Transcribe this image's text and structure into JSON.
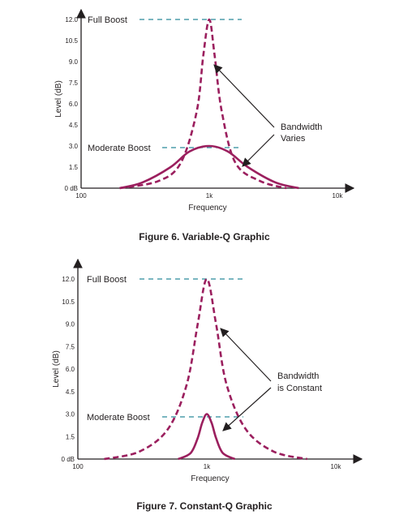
{
  "chart_data": [
    {
      "type": "line",
      "caption": "Figure 6. Variable-Q Graphic",
      "xlabel": "Frequency",
      "ylabel": "Level (dB)",
      "x_scale": "log",
      "xlim": [
        100,
        10000
      ],
      "x_ticks": [
        {
          "value": 100,
          "label": "100"
        },
        {
          "value": 1000,
          "label": "1k"
        },
        {
          "value": 10000,
          "label": "10k"
        }
      ],
      "ylim": [
        0,
        12.0
      ],
      "y_ticks": [
        {
          "value": 0,
          "label": "0 dB"
        },
        {
          "value": 1.5,
          "label": "1.5"
        },
        {
          "value": 3.0,
          "label": "3.0"
        },
        {
          "value": 4.5,
          "label": "4.5"
        },
        {
          "value": 6.0,
          "label": "6.0"
        },
        {
          "value": 7.5,
          "label": "7.5"
        },
        {
          "value": 9.0,
          "label": "9.0"
        },
        {
          "value": 10.5,
          "label": "10.5"
        },
        {
          "value": 12.0,
          "label": "12.0"
        }
      ],
      "series": [
        {
          "style": "dashed",
          "color": "#9b1f5e",
          "x": [
            200,
            400,
            600,
            800,
            900,
            1000,
            1100,
            1250,
            1600,
            2500,
            4000
          ],
          "y": [
            0,
            0.5,
            1.8,
            5.5,
            9.5,
            12.0,
            9.5,
            5.5,
            1.8,
            0.5,
            0
          ]
        },
        {
          "style": "solid",
          "color": "#9b1f5e",
          "x": [
            200,
            300,
            500,
            700,
            1000,
            1400,
            2000,
            3300,
            5000
          ],
          "y": [
            0,
            0.4,
            1.5,
            2.6,
            3.0,
            2.6,
            1.5,
            0.4,
            0
          ]
        }
      ],
      "annotations": {
        "full_boost": "Full Boost",
        "moderate_boost": "Moderate Boost",
        "bandwidth_line1": "Bandwidth",
        "bandwidth_line2": "Varies"
      }
    },
    {
      "type": "line",
      "caption": "Figure 7. Constant-Q Graphic",
      "xlabel": "Frequency",
      "ylabel": "Level (dB)",
      "x_scale": "log",
      "xlim": [
        100,
        10000
      ],
      "x_ticks": [
        {
          "value": 100,
          "label": "100"
        },
        {
          "value": 1000,
          "label": "1k"
        },
        {
          "value": 10000,
          "label": "10k"
        }
      ],
      "ylim": [
        0,
        12.0
      ],
      "y_ticks": [
        {
          "value": 0,
          "label": "0 dB"
        },
        {
          "value": 1.5,
          "label": "1.5"
        },
        {
          "value": 3.0,
          "label": "3.0"
        },
        {
          "value": 4.5,
          "label": "4.5"
        },
        {
          "value": 6.0,
          "label": "6.0"
        },
        {
          "value": 7.5,
          "label": "7.5"
        },
        {
          "value": 9.0,
          "label": "9.0"
        },
        {
          "value": 10.5,
          "label": "10.5"
        },
        {
          "value": 12.0,
          "label": "12.0"
        }
      ],
      "series": [
        {
          "style": "dashed",
          "color": "#9b1f5e",
          "x": [
            160,
            300,
            500,
            700,
            850,
            1000,
            1180,
            1420,
            2000,
            3300,
            6000
          ],
          "y": [
            0,
            0.5,
            2.0,
            5.0,
            9.0,
            12.0,
            9.0,
            5.0,
            2.0,
            0.5,
            0
          ]
        },
        {
          "style": "solid",
          "color": "#9b1f5e",
          "x": [
            600,
            750,
            850,
            920,
            1000,
            1090,
            1180,
            1330,
            1650
          ],
          "y": [
            0,
            0.4,
            1.4,
            2.4,
            3.0,
            2.4,
            1.4,
            0.4,
            0
          ]
        }
      ],
      "annotations": {
        "full_boost": "Full Boost",
        "moderate_boost": "Moderate Boost",
        "bandwidth_line1": "Bandwidth",
        "bandwidth_line2": "is Constant"
      }
    }
  ]
}
